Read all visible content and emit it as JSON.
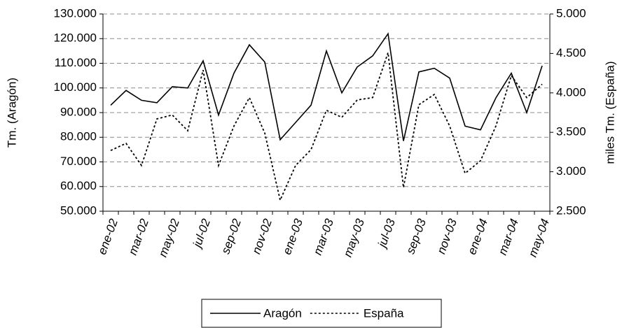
{
  "chart_data": {
    "type": "line",
    "y_label": "Tm. (Aragón)",
    "y2_label": "miles Tm. (España)",
    "categories": [
      "ene-02",
      null,
      "mar-02",
      null,
      "may-02",
      null,
      "jul-02",
      null,
      "sep-02",
      null,
      "nov-02",
      null,
      "ene-03",
      null,
      "mar-03",
      null,
      "may-03",
      null,
      "jul-03",
      null,
      "sep-03",
      null,
      "nov-03",
      null,
      "ene-04",
      null,
      "mar-04",
      null,
      "may-04"
    ],
    "series": [
      {
        "name": "Aragón",
        "color": "#000000",
        "line_style": "solid",
        "values": [
          93000,
          99000,
          95000,
          94000,
          100500,
          100000,
          111000,
          89000,
          106000,
          117500,
          110500,
          79000,
          86000,
          93000,
          115000,
          98000,
          108500,
          113000,
          122000,
          78500,
          106500,
          108000,
          104000,
          84500,
          83000,
          96000,
          106000,
          90000,
          109000
        ]
      },
      {
        "name": "España",
        "color": "#000000",
        "line_style": "dashed",
        "axis": "y2",
        "values": [
          3270,
          3360,
          3080,
          3670,
          3720,
          3520,
          4290,
          3080,
          3580,
          3940,
          3490,
          2640,
          3080,
          3280,
          3780,
          3690,
          3910,
          3940,
          4510,
          2800,
          3850,
          3980,
          3580,
          2980,
          3140,
          3580,
          4220,
          3940,
          4110
        ]
      }
    ],
    "ylim": [
      50000,
      130000
    ],
    "yticks": [
      {
        "value": 50000,
        "label": "50.000"
      },
      {
        "value": 60000,
        "label": "60.000"
      },
      {
        "value": 70000,
        "label": "70.000"
      },
      {
        "value": 80000,
        "label": "80.000"
      },
      {
        "value": 90000,
        "label": "90.000"
      },
      {
        "value": 100000,
        "label": "100.000"
      },
      {
        "value": 110000,
        "label": "110.000"
      },
      {
        "value": 120000,
        "label": "120.000"
      },
      {
        "value": 130000,
        "label": "130.000"
      }
    ],
    "y2lim": [
      2500,
      5000
    ],
    "y2ticks": [
      {
        "value": 2500,
        "label": "2.500"
      },
      {
        "value": 3000,
        "label": "3.000"
      },
      {
        "value": 3500,
        "label": "3.500"
      },
      {
        "value": 4000,
        "label": "4.000"
      },
      {
        "value": 4500,
        "label": "4.500"
      },
      {
        "value": 5000,
        "label": "5.000"
      }
    ],
    "grid": true,
    "legend": "bottom"
  }
}
